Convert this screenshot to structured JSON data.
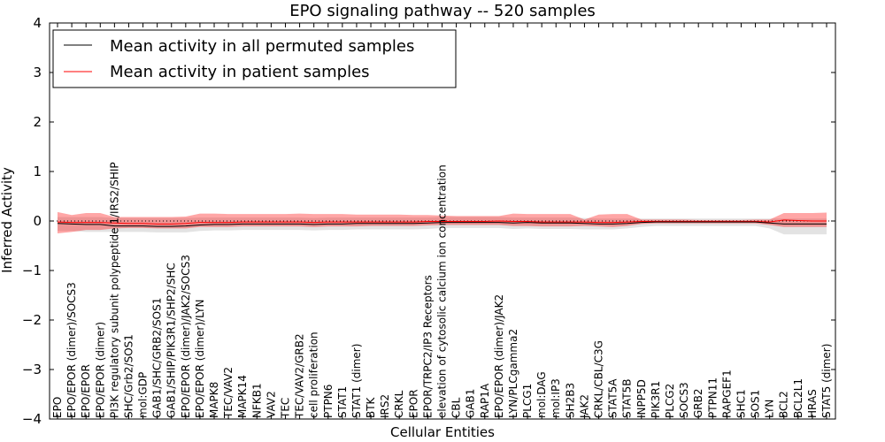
{
  "chart_data": {
    "type": "line",
    "title": "EPO signaling pathway -- 520 samples",
    "xlabel": "Cellular Entities",
    "ylabel": "Inferred Activity",
    "ylim": [
      -4,
      4
    ],
    "yticks": [
      -4,
      -3,
      -2,
      -1,
      0,
      1,
      2,
      3,
      4
    ],
    "ytick_labels": [
      "−4",
      "−3",
      "−2",
      "−1",
      "0",
      "1",
      "2",
      "3",
      "4"
    ],
    "legend": {
      "position": "top-left",
      "entries": [
        {
          "label": "Mean activity in all permuted samples",
          "color": "#000000"
        },
        {
          "label": "Mean activity in patient samples",
          "color": "#ff0000"
        }
      ]
    },
    "categories": [
      "EPO",
      "EPO/EPOR (dimer)/SOCS3",
      "EPO/EPOR",
      "EPO/EPOR (dimer)",
      "PI3K regulatory subunit polypeptide 1/IRS2/SHIP",
      "SHC/Grb2/SOS1",
      "mol:GDP",
      "GAB1/SHC/GRB2/SOS1",
      "GAB1/SHIP/PIK3R1/SHP2/SHC",
      "EPO/EPOR (dimer)/JAK2/SOCS3",
      "EPO/EPOR (dimer)/LYN",
      "MAPK8",
      "TEC/VAV2",
      "MAPK14",
      "NFKB1",
      "VAV2",
      "TEC",
      "TEC/VAV2/GRB2",
      "cell proliferation",
      "PTPN6",
      "STAT1",
      "STAT1 (dimer)",
      "BTK",
      "IRS2",
      "CRKL",
      "EPOR",
      "EPOR/TRPC2/IP3 Receptors",
      "elevation of cytosolic calcium ion concentration",
      "CBL",
      "GAB1",
      "RAP1A",
      "EPO/EPOR (dimer)/JAK2",
      "LYN/PLCgamma2",
      "PLCG1",
      "mol:DAG",
      "mol:IP3",
      "SH2B3",
      "JAK2",
      "CRKL/CBL/C3G",
      "STAT5A",
      "STAT5B",
      "INPP5D",
      "PIK3R1",
      "PLCG2",
      "SOCS3",
      "GRB2",
      "PTPN11",
      "RAPGEF1",
      "SHC1",
      "SOS1",
      "LYN",
      "BCL2",
      "BCL2L1",
      "HRAS",
      "STAT5 (dimer)"
    ],
    "series": [
      {
        "name": "Mean activity in all permuted samples",
        "color": "#000000",
        "values": [
          -0.05,
          -0.06,
          -0.07,
          -0.07,
          -0.1,
          -0.1,
          -0.1,
          -0.11,
          -0.11,
          -0.1,
          -0.08,
          -0.07,
          -0.07,
          -0.06,
          -0.06,
          -0.06,
          -0.06,
          -0.06,
          -0.07,
          -0.06,
          -0.06,
          -0.05,
          -0.05,
          -0.05,
          -0.05,
          -0.05,
          -0.04,
          -0.03,
          -0.03,
          -0.03,
          -0.03,
          -0.03,
          -0.04,
          -0.03,
          -0.04,
          -0.04,
          -0.04,
          -0.05,
          -0.06,
          -0.06,
          -0.05,
          -0.03,
          -0.02,
          -0.02,
          -0.02,
          -0.02,
          -0.02,
          -0.02,
          -0.02,
          -0.02,
          -0.04,
          -0.06,
          -0.06,
          -0.06,
          -0.06
        ],
        "lower": [
          -0.2,
          -0.2,
          -0.22,
          -0.22,
          -0.22,
          -0.22,
          -0.22,
          -0.23,
          -0.23,
          -0.23,
          -0.2,
          -0.19,
          -0.19,
          -0.18,
          -0.18,
          -0.18,
          -0.18,
          -0.18,
          -0.19,
          -0.18,
          -0.18,
          -0.17,
          -0.17,
          -0.17,
          -0.17,
          -0.17,
          -0.16,
          -0.14,
          -0.14,
          -0.14,
          -0.14,
          -0.14,
          -0.16,
          -0.15,
          -0.16,
          -0.16,
          -0.16,
          -0.17,
          -0.17,
          -0.17,
          -0.15,
          -0.12,
          -0.1,
          -0.1,
          -0.1,
          -0.1,
          -0.1,
          -0.1,
          -0.1,
          -0.1,
          -0.15,
          -0.27,
          -0.27,
          -0.27,
          -0.27
        ],
        "upper": [
          0.08,
          0.08,
          0.08,
          0.08,
          0.06,
          0.06,
          0.06,
          0.06,
          0.06,
          0.06,
          0.07,
          0.07,
          0.07,
          0.07,
          0.07,
          0.07,
          0.07,
          0.07,
          0.06,
          0.07,
          0.07,
          0.07,
          0.07,
          0.07,
          0.07,
          0.07,
          0.07,
          0.08,
          0.08,
          0.08,
          0.08,
          0.08,
          0.07,
          0.07,
          0.07,
          0.07,
          0.07,
          0.06,
          0.05,
          0.05,
          0.05,
          0.05,
          0.05,
          0.05,
          0.05,
          0.05,
          0.05,
          0.05,
          0.05,
          0.05,
          0.05,
          0.05,
          0.05,
          0.05,
          0.05
        ]
      },
      {
        "name": "Mean activity in patient samples",
        "color": "#ff0000",
        "values": [
          -0.02,
          -0.03,
          -0.03,
          -0.03,
          -0.04,
          -0.05,
          -0.05,
          -0.06,
          -0.06,
          -0.05,
          -0.03,
          -0.03,
          -0.03,
          -0.02,
          -0.02,
          -0.02,
          -0.02,
          -0.02,
          -0.03,
          -0.02,
          -0.02,
          -0.02,
          -0.02,
          -0.02,
          -0.02,
          -0.02,
          -0.01,
          -0.01,
          -0.01,
          -0.01,
          -0.01,
          0.0,
          -0.01,
          -0.01,
          -0.02,
          -0.02,
          -0.02,
          -0.02,
          -0.03,
          -0.03,
          -0.02,
          -0.01,
          -0.01,
          -0.01,
          -0.01,
          -0.01,
          -0.01,
          -0.01,
          -0.01,
          -0.01,
          -0.02,
          0.02,
          0.01,
          0.0,
          0.0
        ],
        "lower": [
          -0.25,
          -0.22,
          -0.18,
          -0.18,
          -0.15,
          -0.14,
          -0.14,
          -0.15,
          -0.15,
          -0.15,
          -0.12,
          -0.12,
          -0.12,
          -0.11,
          -0.11,
          -0.11,
          -0.11,
          -0.11,
          -0.12,
          -0.11,
          -0.11,
          -0.11,
          -0.1,
          -0.1,
          -0.1,
          -0.1,
          -0.09,
          -0.08,
          -0.08,
          -0.08,
          -0.08,
          -0.08,
          -0.1,
          -0.1,
          -0.11,
          -0.11,
          -0.11,
          -0.1,
          -0.11,
          -0.12,
          -0.1,
          -0.06,
          -0.05,
          -0.05,
          -0.05,
          -0.05,
          -0.05,
          -0.05,
          -0.05,
          -0.05,
          -0.08,
          -0.12,
          -0.12,
          -0.12,
          -0.12
        ],
        "upper": [
          0.18,
          0.12,
          0.16,
          0.16,
          0.08,
          0.08,
          0.08,
          0.08,
          0.08,
          0.09,
          0.15,
          0.15,
          0.14,
          0.14,
          0.14,
          0.14,
          0.14,
          0.15,
          0.14,
          0.14,
          0.14,
          0.13,
          0.13,
          0.13,
          0.13,
          0.12,
          0.12,
          0.11,
          0.1,
          0.1,
          0.1,
          0.1,
          0.15,
          0.14,
          0.14,
          0.14,
          0.14,
          0.03,
          0.13,
          0.14,
          0.14,
          0.03,
          0.03,
          0.03,
          0.03,
          0.02,
          0.02,
          0.02,
          0.02,
          0.03,
          0.03,
          0.16,
          0.16,
          0.16,
          0.17
        ]
      }
    ],
    "reference_line": {
      "y": 0,
      "style": "dotted",
      "color": "#000000"
    }
  }
}
